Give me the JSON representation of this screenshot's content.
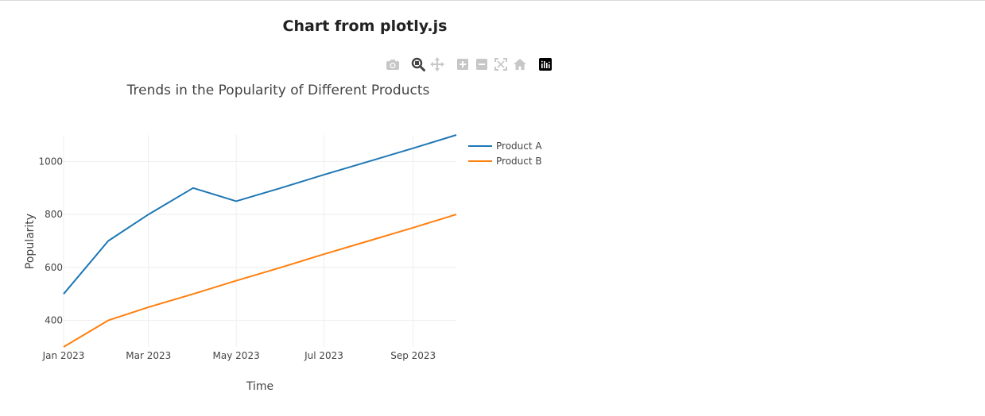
{
  "page": {
    "heading": "Chart from plotly.js"
  },
  "modebar": {
    "buttons": [
      {
        "icon": "camera-icon",
        "label": "Download plot as a png"
      },
      {
        "icon": "zoom-icon",
        "label": "Zoom",
        "active": true
      },
      {
        "icon": "pan-icon",
        "label": "Pan"
      },
      {
        "icon": "zoom-in-icon",
        "label": "Zoom in"
      },
      {
        "icon": "zoom-out-icon",
        "label": "Zoom out"
      },
      {
        "icon": "autoscale-icon",
        "label": "Autoscale"
      },
      {
        "icon": "reset-axes-icon",
        "label": "Reset axes"
      },
      {
        "icon": "plotly-logo-icon",
        "label": "Produced with Plotly"
      }
    ]
  },
  "chart_data": {
    "type": "line",
    "title": "Trends in the Popularity of Different Products",
    "xlabel": "Time",
    "ylabel": "Popularity",
    "x": [
      "2023-01-01",
      "2023-02-01",
      "2023-03-01",
      "2023-04-01",
      "2023-05-01",
      "2023-06-01",
      "2023-07-01",
      "2023-08-01",
      "2023-09-01",
      "2023-10-01"
    ],
    "x_range": [
      "2023-01-01",
      "2023-10-01"
    ],
    "x_ticks": [
      "2023-01-01",
      "2023-03-01",
      "2023-05-01",
      "2023-07-01",
      "2023-09-01"
    ],
    "x_tick_labels": [
      "Jan 2023",
      "Mar 2023",
      "May 2023",
      "Jul 2023",
      "Sep 2023"
    ],
    "ylim": [
      300,
      1100
    ],
    "y_ticks": [
      400,
      600,
      800,
      1000
    ],
    "y_tick_labels": [
      "400",
      "600",
      "800",
      "1000"
    ],
    "grid": true,
    "legend_position": "top-right",
    "series": [
      {
        "name": "Product A",
        "color": "#1f77b4",
        "values": [
          500,
          700,
          800,
          900,
          850,
          900,
          950,
          1000,
          1050,
          1100
        ]
      },
      {
        "name": "Product B",
        "color": "#ff7f0e",
        "values": [
          300,
          400,
          450,
          500,
          550,
          600,
          650,
          700,
          750,
          800
        ]
      }
    ]
  }
}
